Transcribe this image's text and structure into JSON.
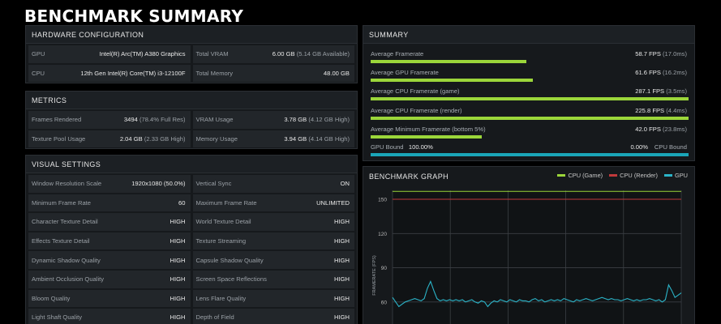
{
  "title": "BENCHMARK SUMMARY",
  "hardware": {
    "header": "HARDWARE CONFIGURATION",
    "cells": [
      {
        "label": "GPU",
        "value": "Intel(R) Arc(TM) A380 Graphics",
        "sub": ""
      },
      {
        "label": "Total VRAM",
        "value": "6.00 GB",
        "sub": "(5.14 GB Available)"
      },
      {
        "label": "CPU",
        "value": "12th Gen Intel(R) Core(TM) i3-12100F",
        "sub": ""
      },
      {
        "label": "Total Memory",
        "value": "48.00 GB",
        "sub": ""
      }
    ]
  },
  "metrics": {
    "header": "METRICS",
    "cells": [
      {
        "label": "Frames Rendered",
        "value": "3494",
        "sub": "(78.4% Full Res)"
      },
      {
        "label": "VRAM Usage",
        "value": "3.78 GB",
        "sub": "(4.12 GB High)"
      },
      {
        "label": "Texture Pool Usage",
        "value": "2.04 GB",
        "sub": "(2.33 GB High)"
      },
      {
        "label": "Memory Usage",
        "value": "3.94 GB",
        "sub": "(4.14 GB High)"
      }
    ]
  },
  "visual": {
    "header": "VISUAL SETTINGS",
    "cells": [
      {
        "label": "Window Resolution Scale",
        "value": "1920x1080 (50.0%)"
      },
      {
        "label": "Vertical Sync",
        "value": "ON"
      },
      {
        "label": "Minimum Frame Rate",
        "value": "60"
      },
      {
        "label": "Maximum Frame Rate",
        "value": "UNLIMITED"
      },
      {
        "label": "Character Texture Detail",
        "value": "HIGH"
      },
      {
        "label": "World Texture Detail",
        "value": "HIGH"
      },
      {
        "label": "Effects Texture Detail",
        "value": "HIGH"
      },
      {
        "label": "Texture Streaming",
        "value": "HIGH"
      },
      {
        "label": "Dynamic Shadow Quality",
        "value": "HIGH"
      },
      {
        "label": "Capsule Shadow Quality",
        "value": "HIGH"
      },
      {
        "label": "Ambient Occlusion Quality",
        "value": "HIGH"
      },
      {
        "label": "Screen Space Reflections",
        "value": "HIGH"
      },
      {
        "label": "Bloom Quality",
        "value": "HIGH"
      },
      {
        "label": "Lens Flare Quality",
        "value": "HIGH"
      },
      {
        "label": "Light Shaft Quality",
        "value": "HIGH"
      },
      {
        "label": "Depth of Field",
        "value": "HIGH"
      }
    ]
  },
  "summary": {
    "header": "SUMMARY",
    "rows": [
      {
        "label": "Average Framerate",
        "value": "58.7 FPS",
        "sub": "(17.0ms)",
        "fraction": 0.49
      },
      {
        "label": "Average GPU Framerate",
        "value": "61.6 FPS",
        "sub": "(16.2ms)",
        "fraction": 0.51
      },
      {
        "label": "Average CPU Framerate (game)",
        "value": "287.1 FPS",
        "sub": "(3.5ms)",
        "fraction": 1.0
      },
      {
        "label": "Average CPU Framerate (render)",
        "value": "225.8 FPS",
        "sub": "(4.4ms)",
        "fraction": 1.0
      },
      {
        "label": "Average Minimum Framerate (bottom 5%)",
        "value": "42.0 FPS",
        "sub": "(23.8ms)",
        "fraction": 0.35
      }
    ],
    "gpu_bound": {
      "label": "GPU Bound",
      "value": "100.00%",
      "other_value": "0.00%",
      "other_label": "CPU Bound",
      "fraction": 1.0
    }
  },
  "colors": {
    "bar_green": "#9bd63a",
    "bar_teal": "#1aa5b8",
    "cpu_game": "#9bd63a",
    "cpu_render": "#c0393b",
    "gpu": "#2bb4c8"
  },
  "chart_data": {
    "type": "line",
    "title": "BENCHMARK GRAPH",
    "ylabel": "FRAMERATE (FPS)",
    "xlabel": "",
    "ylim": [
      40,
      155
    ],
    "yticks": [
      60,
      90,
      120,
      150
    ],
    "grid": true,
    "legend_position": "top-right",
    "series": [
      {
        "name": "CPU (Game)",
        "color": "#9bd63a",
        "values": [
          290,
          290,
          290,
          290,
          290
        ]
      },
      {
        "name": "CPU (Render)",
        "color": "#c0393b",
        "values": [
          150,
          150,
          150,
          150,
          150
        ]
      },
      {
        "name": "GPU",
        "color": "#2bb4c8",
        "values": [
          64,
          60,
          56,
          58,
          60,
          61,
          62,
          63,
          62,
          61,
          63,
          72,
          78,
          70,
          63,
          61,
          62,
          61,
          62,
          61,
          62,
          61,
          62,
          60,
          61,
          62,
          60,
          59,
          61,
          60,
          56,
          59,
          61,
          60,
          62,
          61,
          60,
          62,
          61,
          60,
          62,
          61,
          61,
          60,
          62,
          63,
          61,
          62,
          60,
          61,
          62,
          61,
          62,
          61,
          63,
          62,
          61,
          60,
          62,
          61,
          62,
          63,
          62,
          61,
          62,
          63,
          64,
          63,
          62,
          63,
          62,
          62,
          61,
          62,
          63,
          62,
          61,
          62,
          61,
          62,
          62,
          63,
          62,
          61,
          62,
          60,
          62,
          75,
          70,
          64,
          66,
          68
        ]
      }
    ]
  }
}
